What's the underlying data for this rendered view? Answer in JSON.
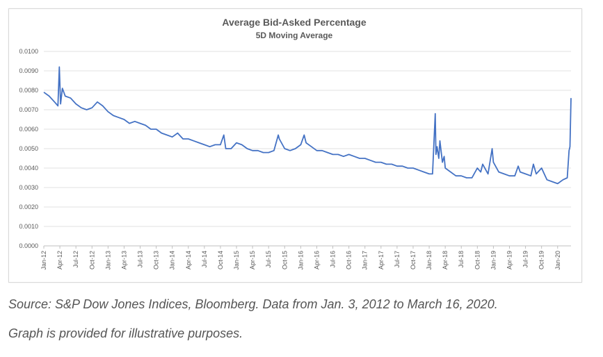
{
  "chart_data": {
    "type": "line",
    "title": "Average Bid-Asked Percentage",
    "subtitle": "5D Moving Average",
    "xlabel": "",
    "ylabel": "",
    "ylim": [
      0,
      0.01
    ],
    "y_ticks": [
      "0.0000",
      "0.0010",
      "0.0020",
      "0.0030",
      "0.0040",
      "0.0050",
      "0.0060",
      "0.0070",
      "0.0080",
      "0.0090",
      "0.0100"
    ],
    "x_ticks": [
      "Jan-12",
      "Apr-12",
      "Jul-12",
      "Oct-12",
      "Jan-13",
      "Apr-13",
      "Jul-13",
      "Oct-13",
      "Jan-14",
      "Apr-14",
      "Jul-14",
      "Oct-14",
      "Jan-15",
      "Apr-15",
      "Jul-15",
      "Oct-15",
      "Jan-16",
      "Apr-16",
      "Jul-16",
      "Oct-16",
      "Jan-17",
      "Apr-17",
      "Jul-17",
      "Oct-17",
      "Jan-18",
      "Apr-18",
      "Jul-18",
      "Oct-18",
      "Jan-19",
      "Apr-19",
      "Jul-19",
      "Oct-19",
      "Jan-20"
    ],
    "grid": true,
    "legend": "none",
    "series_color": "#4472c4",
    "series": [
      {
        "x": [
          "2012-01",
          "2012-02",
          "2012-03",
          "2012-03-20",
          "2012-03-28",
          "2012-04-05",
          "2012-04-15",
          "2012-05",
          "2012-06",
          "2012-07",
          "2012-08",
          "2012-09",
          "2012-10",
          "2012-11",
          "2012-12",
          "2013-01",
          "2013-02",
          "2013-03",
          "2013-04",
          "2013-05",
          "2013-06",
          "2013-07",
          "2013-08",
          "2013-09",
          "2013-10",
          "2013-11",
          "2013-12",
          "2014-01",
          "2014-02",
          "2014-03",
          "2014-04",
          "2014-05",
          "2014-06",
          "2014-07",
          "2014-08",
          "2014-09",
          "2014-10",
          "2014-10-20",
          "2014-11",
          "2014-12",
          "2015-01",
          "2015-02",
          "2015-03",
          "2015-04",
          "2015-05",
          "2015-06",
          "2015-07",
          "2015-08",
          "2015-08-25",
          "2015-09",
          "2015-10",
          "2015-11",
          "2015-12",
          "2016-01",
          "2016-01-20",
          "2016-02",
          "2016-03",
          "2016-04",
          "2016-05",
          "2016-06",
          "2016-07",
          "2016-08",
          "2016-09",
          "2016-10",
          "2016-11",
          "2016-12",
          "2017-01",
          "2017-02",
          "2017-03",
          "2017-04",
          "2017-05",
          "2017-06",
          "2017-07",
          "2017-08",
          "2017-09",
          "2017-10",
          "2017-11",
          "2017-12",
          "2018-01",
          "2018-01-20",
          "2018-02-05",
          "2018-02-09",
          "2018-02-15",
          "2018-02-25",
          "2018-03",
          "2018-03-15",
          "2018-03-25",
          "2018-04",
          "2018-05",
          "2018-06",
          "2018-07",
          "2018-08",
          "2018-09",
          "2018-10",
          "2018-10-20",
          "2018-11",
          "2018-12",
          "2018-12-24",
          "2019-01",
          "2019-02",
          "2019-03",
          "2019-04",
          "2019-05",
          "2019-05-20",
          "2019-06",
          "2019-07",
          "2019-08",
          "2019-08-15",
          "2019-09",
          "2019-10",
          "2019-11",
          "2019-12",
          "2020-01",
          "2020-02",
          "2020-02-25",
          "2020-03-05",
          "2020-03-10",
          "2020-03-16"
        ],
        "y": [
          0.0079,
          0.0077,
          0.0074,
          0.0072,
          0.0092,
          0.0073,
          0.0081,
          0.0077,
          0.0076,
          0.0073,
          0.0071,
          0.007,
          0.0071,
          0.0074,
          0.0072,
          0.0069,
          0.0067,
          0.0066,
          0.0065,
          0.0063,
          0.0064,
          0.0063,
          0.0062,
          0.006,
          0.006,
          0.0058,
          0.0057,
          0.0056,
          0.0058,
          0.0055,
          0.0055,
          0.0054,
          0.0053,
          0.0052,
          0.0051,
          0.0052,
          0.0052,
          0.0057,
          0.005,
          0.005,
          0.0053,
          0.0052,
          0.005,
          0.0049,
          0.0049,
          0.0048,
          0.0048,
          0.0049,
          0.0057,
          0.0055,
          0.005,
          0.0049,
          0.005,
          0.0052,
          0.0057,
          0.0053,
          0.0051,
          0.0049,
          0.0049,
          0.0048,
          0.0047,
          0.0047,
          0.0046,
          0.0047,
          0.0046,
          0.0045,
          0.0045,
          0.0044,
          0.0043,
          0.0043,
          0.0042,
          0.0042,
          0.0041,
          0.0041,
          0.004,
          0.004,
          0.0039,
          0.0038,
          0.0037,
          0.0037,
          0.0068,
          0.0047,
          0.0051,
          0.0045,
          0.0054,
          0.0043,
          0.0046,
          0.004,
          0.0038,
          0.0036,
          0.0036,
          0.0035,
          0.0035,
          0.004,
          0.0038,
          0.0042,
          0.0037,
          0.005,
          0.0043,
          0.0038,
          0.0037,
          0.0036,
          0.0036,
          0.0041,
          0.0038,
          0.0037,
          0.0036,
          0.0042,
          0.0037,
          0.004,
          0.0034,
          0.0033,
          0.0032,
          0.0034,
          0.0035,
          0.0049,
          0.0051,
          0.0076
        ]
      }
    ]
  },
  "captions": {
    "source": "Source: S&P Dow Jones Indices, Bloomberg. Data from Jan. 3, 2012 to March 16, 2020.",
    "note": "Graph is provided for illustrative purposes."
  }
}
